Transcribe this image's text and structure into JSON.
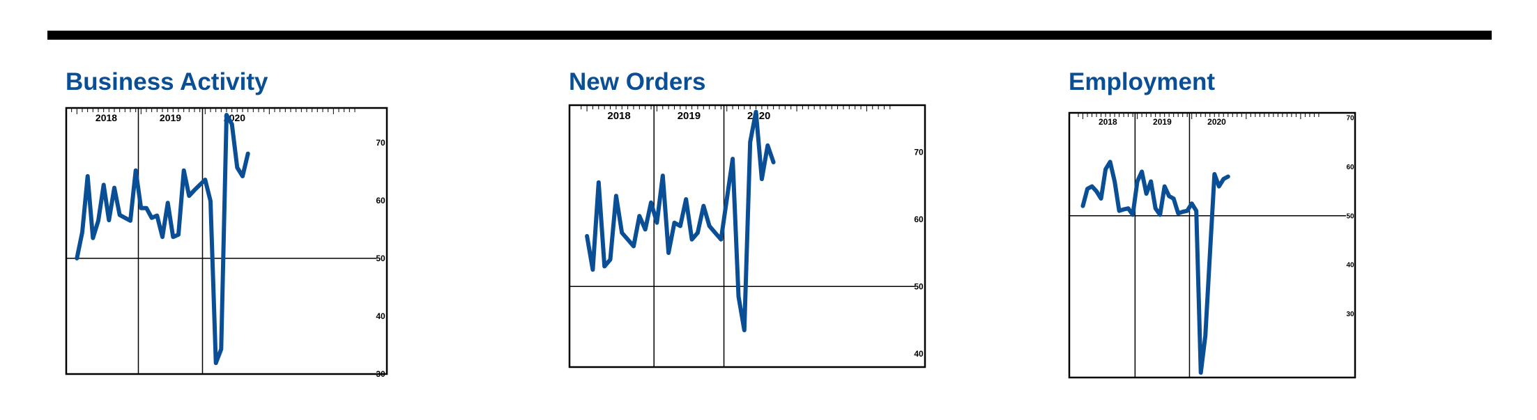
{
  "colors": {
    "line": "#0a4f95",
    "title": "#0a4f95",
    "axis": "#000000"
  },
  "chart_data": [
    {
      "type": "line",
      "title": "Business Activity",
      "ylim": [
        30,
        76
      ],
      "yticks": [
        30,
        40,
        50,
        60,
        70
      ],
      "xlim": [
        -2,
        58
      ],
      "years": [
        "2018",
        "2019",
        "2020"
      ],
      "reference_line": 50,
      "values": [
        50.0,
        54.5,
        64.2,
        53.5,
        56.5,
        62.7,
        56.6,
        62.2,
        57.5,
        57.0,
        56.5,
        65.2,
        58.7,
        58.7,
        57.0,
        57.4,
        53.7,
        59.6,
        53.7,
        54.1,
        65.2,
        60.8,
        61.8,
        62.7,
        63.6,
        59.9,
        31.9,
        34.3,
        74.8,
        73.2,
        65.7,
        64.2,
        68.1
      ]
    },
    {
      "type": "line",
      "title": "New Orders",
      "ylim": [
        38,
        77
      ],
      "yticks": [
        40,
        50,
        60,
        70
      ],
      "xlim": [
        -3,
        58
      ],
      "years": [
        "2018",
        "2019",
        "2020"
      ],
      "reference_line": 50,
      "values": [
        57.5,
        52.5,
        65.5,
        53.0,
        54.0,
        63.5,
        58.0,
        57.0,
        56.0,
        60.5,
        58.5,
        62.5,
        59.5,
        66.5,
        55.0,
        59.5,
        59.0,
        63.0,
        57.0,
        58.0,
        62.0,
        59.0,
        58.0,
        57.0,
        63.0,
        69.0,
        48.5,
        43.5,
        71.5,
        76.0,
        66.0,
        71.0,
        68.5
      ]
    },
    {
      "type": "line",
      "title": "Employment",
      "ylim": [
        17,
        71
      ],
      "yticks": [
        30,
        40,
        50,
        60,
        70
      ],
      "xlim": [
        -3,
        60
      ],
      "years": [
        "2018",
        "2019",
        "2020"
      ],
      "reference_line": 50,
      "values": [
        52.0,
        55.5,
        56.0,
        55.0,
        53.5,
        59.5,
        61.0,
        57.0,
        51.0,
        51.3,
        51.5,
        50.2,
        57.0,
        59.0,
        54.5,
        57.0,
        51.5,
        50.2,
        56.0,
        54.0,
        53.5,
        50.5,
        50.8,
        51.0,
        52.5,
        51.0,
        18.0,
        25.5,
        42.0,
        58.5,
        56.0,
        57.5,
        58.0
      ]
    }
  ]
}
